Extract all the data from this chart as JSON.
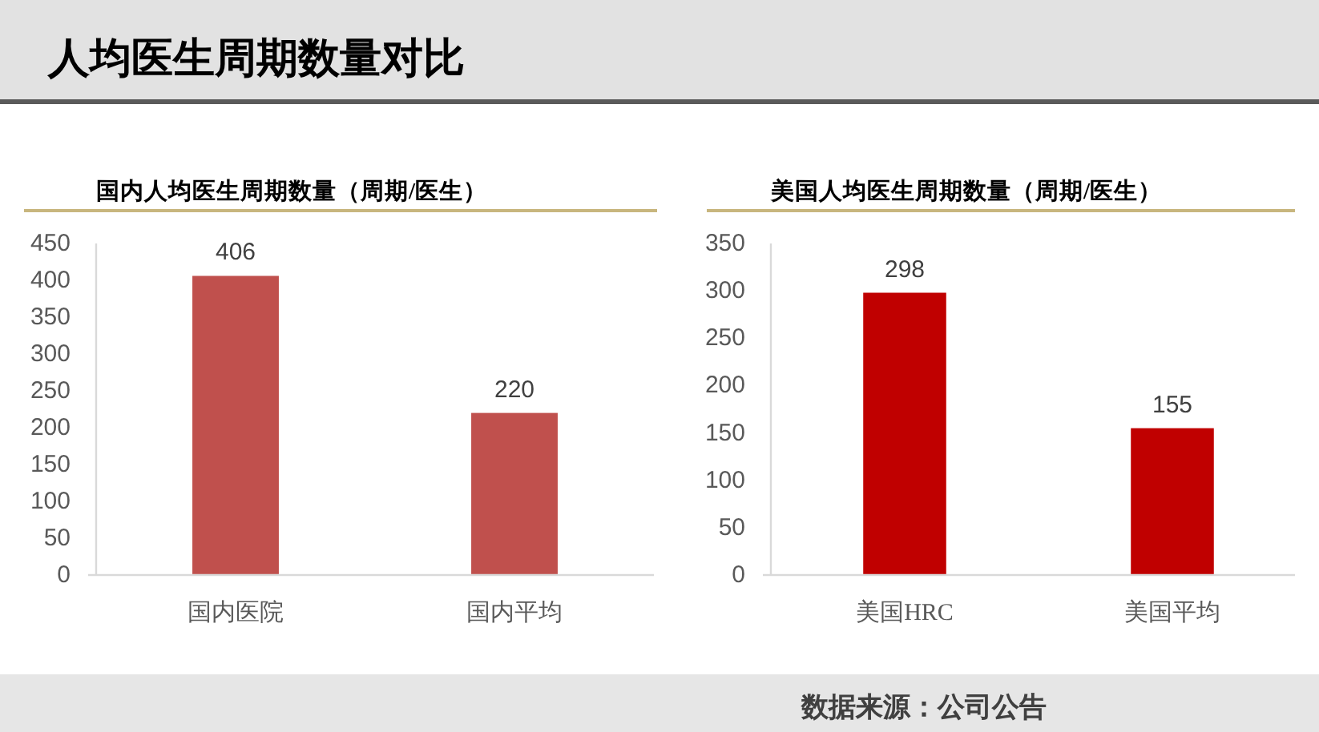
{
  "chart_data": [
    {
      "type": "bar",
      "title": "人均医生周期数量对比",
      "subtitle": "国内人均医生周期数量（周期/医生）",
      "categories": [
        "国内医院",
        "国内平均"
      ],
      "values": [
        406,
        220
      ],
      "color": "#c0504d",
      "ylim": [
        0,
        450
      ],
      "yticks": [
        0,
        50,
        100,
        150,
        200,
        250,
        300,
        350,
        400,
        450
      ],
      "data_labels": true
    },
    {
      "type": "bar",
      "subtitle": "美国人均医生周期数量（周期/医生）",
      "categories": [
        "美国HRC",
        "美国平均"
      ],
      "values": [
        298,
        155
      ],
      "color": "#c00000",
      "ylim": [
        0,
        350
      ],
      "yticks": [
        0,
        50,
        100,
        150,
        200,
        250,
        300,
        350
      ],
      "data_labels": true,
      "annotations": [
        "数据来源：公司公告"
      ]
    }
  ]
}
